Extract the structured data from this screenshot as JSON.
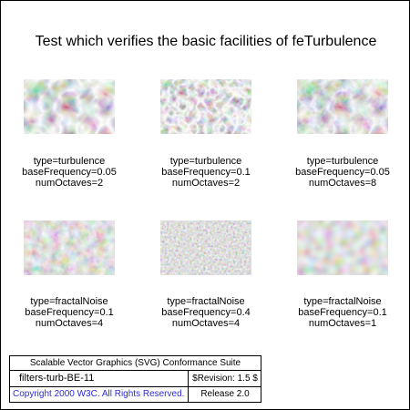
{
  "title": "Test which verifies the basic facilities of feTurbulence",
  "tiles": [
    {
      "type": "type=turbulence",
      "freq": "baseFrequency=0.05",
      "octaves": "numOctaves=2"
    },
    {
      "type": "type=turbulence",
      "freq": "baseFrequency=0.1",
      "octaves": "numOctaves=2"
    },
    {
      "type": "type=turbulence",
      "freq": "baseFrequency=0.05",
      "octaves": "numOctaves=8"
    },
    {
      "type": "type=fractalNoise",
      "freq": "baseFrequency=0.1",
      "octaves": "numOctaves=4"
    },
    {
      "type": "type=fractalNoise",
      "freq": "baseFrequency=0.4",
      "octaves": "numOctaves=4"
    },
    {
      "type": "type=fractalNoise",
      "freq": "baseFrequency=0.1",
      "octaves": "numOctaves=1"
    }
  ],
  "legend": {
    "suite": "Scalable Vector Graphics (SVG) Conformance Suite",
    "test_id": "filters-turb-BE-11",
    "revision": "$Revision: 1.5 $",
    "copyright": "Copyright 2000 W3C. All Rights Reserved.",
    "release": "Release 2.0"
  },
  "colors": {
    "copyright_link": "#2b2bd6"
  }
}
